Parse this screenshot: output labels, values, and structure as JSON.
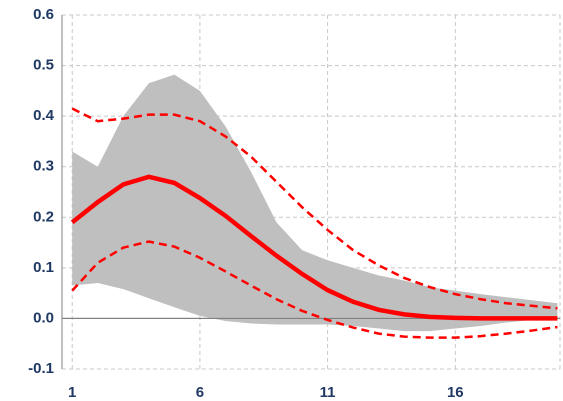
{
  "chart_data": {
    "type": "line",
    "x": [
      1,
      2,
      3,
      4,
      5,
      6,
      7,
      8,
      9,
      10,
      11,
      12,
      13,
      14,
      15,
      16,
      17,
      18,
      19,
      20
    ],
    "band": {
      "color": "#bfbfbf",
      "upper": [
        0.33,
        0.3,
        0.4,
        0.465,
        0.482,
        0.45,
        0.38,
        0.29,
        0.19,
        0.135,
        0.115,
        0.1,
        0.085,
        0.075,
        0.062,
        0.055,
        0.048,
        0.042,
        0.036,
        0.03
      ],
      "lower": [
        0.065,
        0.07,
        0.058,
        0.04,
        0.022,
        0.005,
        -0.005,
        -0.01,
        -0.012,
        -0.012,
        -0.012,
        -0.015,
        -0.02,
        -0.025,
        -0.025,
        -0.02,
        -0.015,
        -0.008,
        -0.003,
        0
      ]
    },
    "series": [
      {
        "color": "#ff0000",
        "style": "dashed",
        "values": [
          0.415,
          0.39,
          0.395,
          0.403,
          0.403,
          0.39,
          0.36,
          0.32,
          0.27,
          0.22,
          0.175,
          0.135,
          0.105,
          0.08,
          0.062,
          0.048,
          0.038,
          0.03,
          0.025,
          0.02
        ]
      },
      {
        "color": "#ff0000",
        "style": "dashed",
        "values": [
          0.055,
          0.11,
          0.14,
          0.152,
          0.142,
          0.12,
          0.093,
          0.065,
          0.038,
          0.015,
          -0.003,
          -0.018,
          -0.03,
          -0.036,
          -0.038,
          -0.038,
          -0.035,
          -0.03,
          -0.024,
          -0.017
        ]
      },
      {
        "color": "#ff0000",
        "style": "solid",
        "values": [
          0.19,
          0.23,
          0.265,
          0.28,
          0.268,
          0.238,
          0.203,
          0.163,
          0.124,
          0.088,
          0.056,
          0.033,
          0.017,
          0.008,
          0.003,
          0.001,
          0,
          0,
          0,
          0
        ]
      }
    ],
    "xlim": [
      0.6,
      20.1
    ],
    "xticks": [
      1,
      6,
      11,
      16
    ],
    "ylim": [
      -0.1,
      0.6
    ],
    "yticks": [
      -0.1,
      0.1,
      0.2,
      0.3,
      0.4,
      0.5,
      0.6,
      {
        "value": 0,
        "label": "0.0"
      }
    ],
    "grid": true
  }
}
